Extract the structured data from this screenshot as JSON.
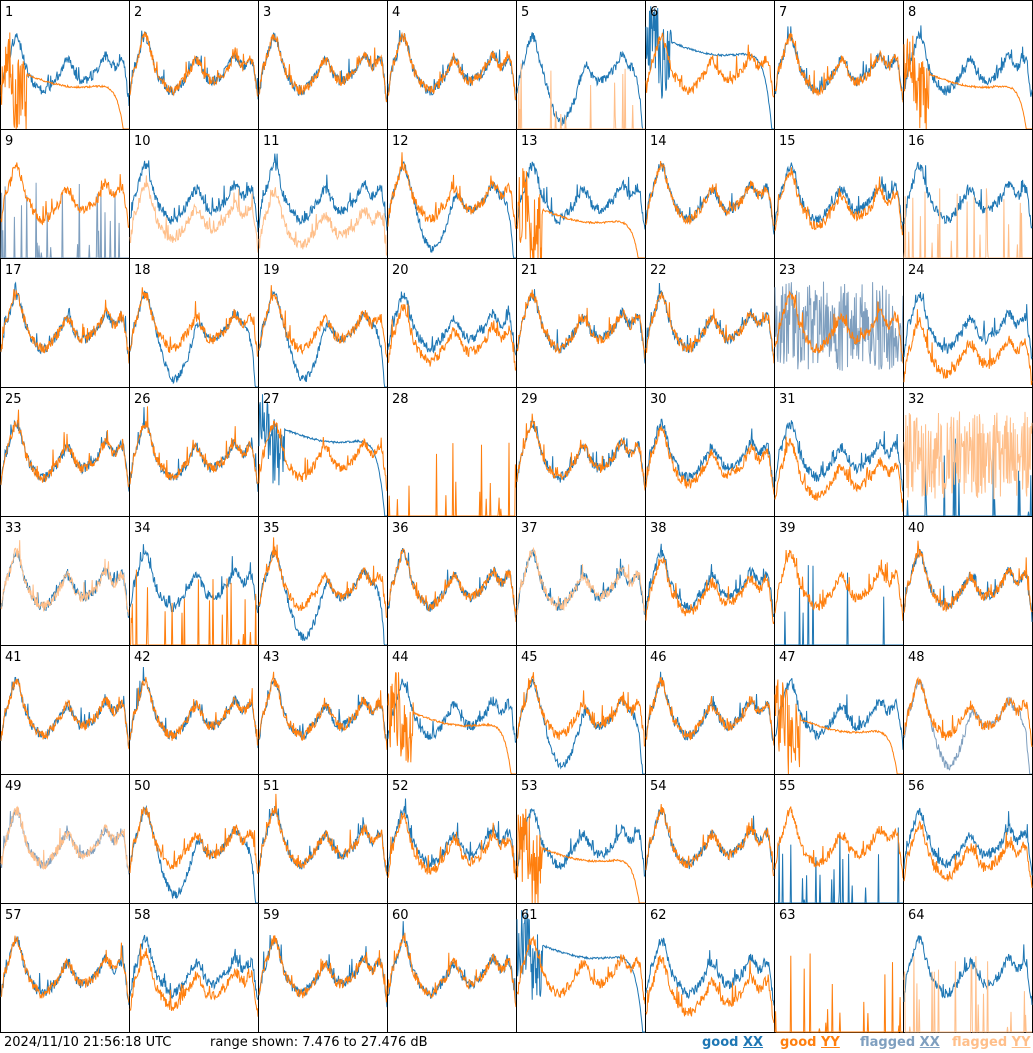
{
  "footer": {
    "timestamp": "2024/11/10 21:56:18 UTC",
    "range_text": "range shown: 7.476 to 27.476 dB",
    "legend": [
      {
        "word": "good",
        "pol": "XX",
        "color": "#1f77b4"
      },
      {
        "word": "good",
        "pol": "YY",
        "color": "#ff7f0e"
      },
      {
        "word": "flagged",
        "pol": "XX",
        "color": "#7f9fbf"
      },
      {
        "word": "flagged",
        "pol": "YY",
        "color": "#ffbf8a"
      }
    ]
  },
  "colors": {
    "good_xx": "#1f77b4",
    "good_yy": "#ff7f0e",
    "flagged_xx": "#7f9fbf",
    "flagged_yy": "#ffbf8a"
  },
  "chart_data": {
    "type": "line",
    "ylim_db": [
      7.476,
      27.476
    ],
    "rows": 8,
    "cols": 8,
    "panel_labels": [
      "1",
      "2",
      "3",
      "4",
      "5",
      "6",
      "7",
      "8",
      "9",
      "10",
      "11",
      "12",
      "13",
      "14",
      "15",
      "16",
      "17",
      "18",
      "19",
      "20",
      "21",
      "22",
      "23",
      "24",
      "25",
      "26",
      "27",
      "28",
      "29",
      "30",
      "31",
      "32",
      "33",
      "34",
      "35",
      "36",
      "37",
      "38",
      "39",
      "40",
      "41",
      "42",
      "43",
      "44",
      "45",
      "46",
      "47",
      "48",
      "49",
      "50",
      "51",
      "52",
      "53",
      "54",
      "55",
      "56",
      "57",
      "58",
      "59",
      "60",
      "61",
      "62",
      "63",
      "64"
    ],
    "tiles": [
      {
        "xx": "normal",
        "yy": "roll",
        "xf": 0,
        "yf": 0,
        "yyo": -5
      },
      {
        "xx": "normal",
        "yy": "normal",
        "xf": 0,
        "yf": 0,
        "yyo": 0
      },
      {
        "xx": "normal",
        "yy": "normal",
        "xf": 0,
        "yf": 0,
        "yyo": 0
      },
      {
        "xx": "normal",
        "yy": "normal",
        "xf": 0,
        "yf": 0,
        "yyo": 0
      },
      {
        "xx": "dip",
        "yy": "spikes",
        "xf": 0,
        "yf": 1,
        "yyo": 0
      },
      {
        "xx": "roll",
        "yy": "normal",
        "xf": 0,
        "yf": 0,
        "yyo": 0
      },
      {
        "xx": "normal",
        "yy": "normal",
        "xf": 0,
        "yf": 0,
        "yyo": 0
      },
      {
        "xx": "normal",
        "yy": "roll",
        "xf": 0,
        "yf": 0,
        "yyo": -5
      },
      {
        "xx": "spikes",
        "yy": "normal",
        "xf": 1,
        "yf": 0,
        "yyo": 0
      },
      {
        "xx": "normal",
        "yy": "normal",
        "xf": 0,
        "yf": 1,
        "yyo": -3
      },
      {
        "xx": "normal",
        "yy": "normal",
        "xf": 0,
        "yf": 1,
        "yyo": -4
      },
      {
        "xx": "dip",
        "yy": "normal",
        "xf": 0,
        "yf": 0,
        "yyo": 0
      },
      {
        "xx": "normal",
        "yy": "roll",
        "xf": 0,
        "yf": 0,
        "yyo": -6
      },
      {
        "xx": "normal",
        "yy": "normal",
        "xf": 0,
        "yf": 0,
        "yyo": 0
      },
      {
        "xx": "normal",
        "yy": "normal",
        "xf": 0,
        "yf": 0,
        "yyo": -1
      },
      {
        "xx": "normal",
        "yy": "spikes",
        "xf": 0,
        "yf": 1,
        "yyo": 0
      },
      {
        "xx": "normal",
        "yy": "normal",
        "xf": 0,
        "yf": 0,
        "yyo": 0
      },
      {
        "xx": "dip",
        "yy": "normal",
        "xf": 0,
        "yf": 0,
        "yyo": 0
      },
      {
        "xx": "dip",
        "yy": "normal",
        "xf": 0,
        "yf": 0,
        "yyo": 0
      },
      {
        "xx": "normal",
        "yy": "normal",
        "xf": 0,
        "yf": 0,
        "yyo": -2
      },
      {
        "xx": "normal",
        "yy": "normal",
        "xf": 0,
        "yf": 0,
        "yyo": 0
      },
      {
        "xx": "normal",
        "yy": "normal",
        "xf": 0,
        "yf": 0,
        "yyo": 0
      },
      {
        "xx": "noisy",
        "yy": "normal",
        "xf": 1,
        "yf": 0,
        "yyo": 0
      },
      {
        "xx": "normal",
        "yy": "normal",
        "xf": 0,
        "yf": 0,
        "yyo": -4
      },
      {
        "xx": "normal",
        "yy": "normal",
        "xf": 0,
        "yf": 0,
        "yyo": 0
      },
      {
        "xx": "normal",
        "yy": "normal",
        "xf": 0,
        "yf": 0,
        "yyo": 0
      },
      {
        "xx": "roll",
        "yy": "normal",
        "xf": 0,
        "yf": 0,
        "yyo": 0
      },
      {
        "xx": "none",
        "yy": "spikes",
        "xf": 0,
        "yf": 0,
        "yyo": 0
      },
      {
        "xx": "normal",
        "yy": "normal",
        "xf": 0,
        "yf": 0,
        "yyo": 0
      },
      {
        "xx": "normal",
        "yy": "normal",
        "xf": 0,
        "yf": 0,
        "yyo": -1
      },
      {
        "xx": "normal",
        "yy": "normal",
        "xf": 0,
        "yf": 0,
        "yyo": -3
      },
      {
        "xx": "spikes",
        "yy": "noisy",
        "xf": 0,
        "yf": 1,
        "yyo": 0
      },
      {
        "xx": "normal",
        "yy": "normal",
        "xf": 0,
        "yf": 1,
        "yyo": 0
      },
      {
        "xx": "normal",
        "yy": "spikes",
        "xf": 0,
        "yf": 0,
        "yyo": 0
      },
      {
        "xx": "dip",
        "yy": "normal",
        "xf": 0,
        "yf": 0,
        "yyo": 0
      },
      {
        "xx": "normal",
        "yy": "normal",
        "xf": 0,
        "yf": 0,
        "yyo": 0
      },
      {
        "xx": "normal",
        "yy": "normal",
        "xf": 0,
        "yf": 1,
        "yyo": 0
      },
      {
        "xx": "normal",
        "yy": "normal",
        "xf": 0,
        "yf": 0,
        "yyo": -1
      },
      {
        "xx": "spikes",
        "yy": "normal",
        "xf": 0,
        "yf": 0,
        "yyo": 0
      },
      {
        "xx": "normal",
        "yy": "normal",
        "xf": 0,
        "yf": 0,
        "yyo": 0
      },
      {
        "xx": "normal",
        "yy": "normal",
        "xf": 0,
        "yf": 0,
        "yyo": 0
      },
      {
        "xx": "normal",
        "yy": "normal",
        "xf": 0,
        "yf": 0,
        "yyo": 0
      },
      {
        "xx": "normal",
        "yy": "normal",
        "xf": 0,
        "yf": 0,
        "yyo": 0
      },
      {
        "xx": "normal",
        "yy": "roll",
        "xf": 0,
        "yf": 0,
        "yyo": -4
      },
      {
        "xx": "dip",
        "yy": "normal",
        "xf": 0,
        "yf": 0,
        "yyo": 0
      },
      {
        "xx": "normal",
        "yy": "normal",
        "xf": 0,
        "yf": 0,
        "yyo": 0
      },
      {
        "xx": "normal",
        "yy": "roll",
        "xf": 0,
        "yf": 0,
        "yyo": -5
      },
      {
        "xx": "dip",
        "yy": "normal",
        "xf": 1,
        "yf": 0,
        "yyo": 0
      },
      {
        "xx": "normal",
        "yy": "normal",
        "xf": 1,
        "yf": 1,
        "yyo": 0
      },
      {
        "xx": "dip",
        "yy": "normal",
        "xf": 0,
        "yf": 0,
        "yyo": 0
      },
      {
        "xx": "normal",
        "yy": "normal",
        "xf": 0,
        "yf": 0,
        "yyo": 0
      },
      {
        "xx": "normal",
        "yy": "normal",
        "xf": 0,
        "yf": 0,
        "yyo": -1
      },
      {
        "xx": "normal",
        "yy": "roll",
        "xf": 0,
        "yf": 0,
        "yyo": -5
      },
      {
        "xx": "normal",
        "yy": "normal",
        "xf": 0,
        "yf": 0,
        "yyo": 0
      },
      {
        "xx": "spikes",
        "yy": "normal",
        "xf": 0,
        "yf": 0,
        "yyo": 0
      },
      {
        "xx": "normal",
        "yy": "normal",
        "xf": 0,
        "yf": 0,
        "yyo": -2
      },
      {
        "xx": "normal",
        "yy": "normal",
        "xf": 0,
        "yf": 0,
        "yyo": 0
      },
      {
        "xx": "normal",
        "yy": "normal",
        "xf": 0,
        "yf": 0,
        "yyo": -2
      },
      {
        "xx": "normal",
        "yy": "normal",
        "xf": 0,
        "yf": 0,
        "yyo": 0
      },
      {
        "xx": "normal",
        "yy": "normal",
        "xf": 0,
        "yf": 0,
        "yyo": 0
      },
      {
        "xx": "roll",
        "yy": "normal",
        "xf": 0,
        "yf": 0,
        "yyo": 0
      },
      {
        "xx": "normal",
        "yy": "normal",
        "xf": 0,
        "yf": 0,
        "yyo": -3
      },
      {
        "xx": "none",
        "yy": "spikes",
        "xf": 0,
        "yf": 0,
        "yyo": 0
      },
      {
        "xx": "normal",
        "yy": "spikes",
        "xf": 0,
        "yf": 1,
        "yyo": 0
      }
    ]
  }
}
